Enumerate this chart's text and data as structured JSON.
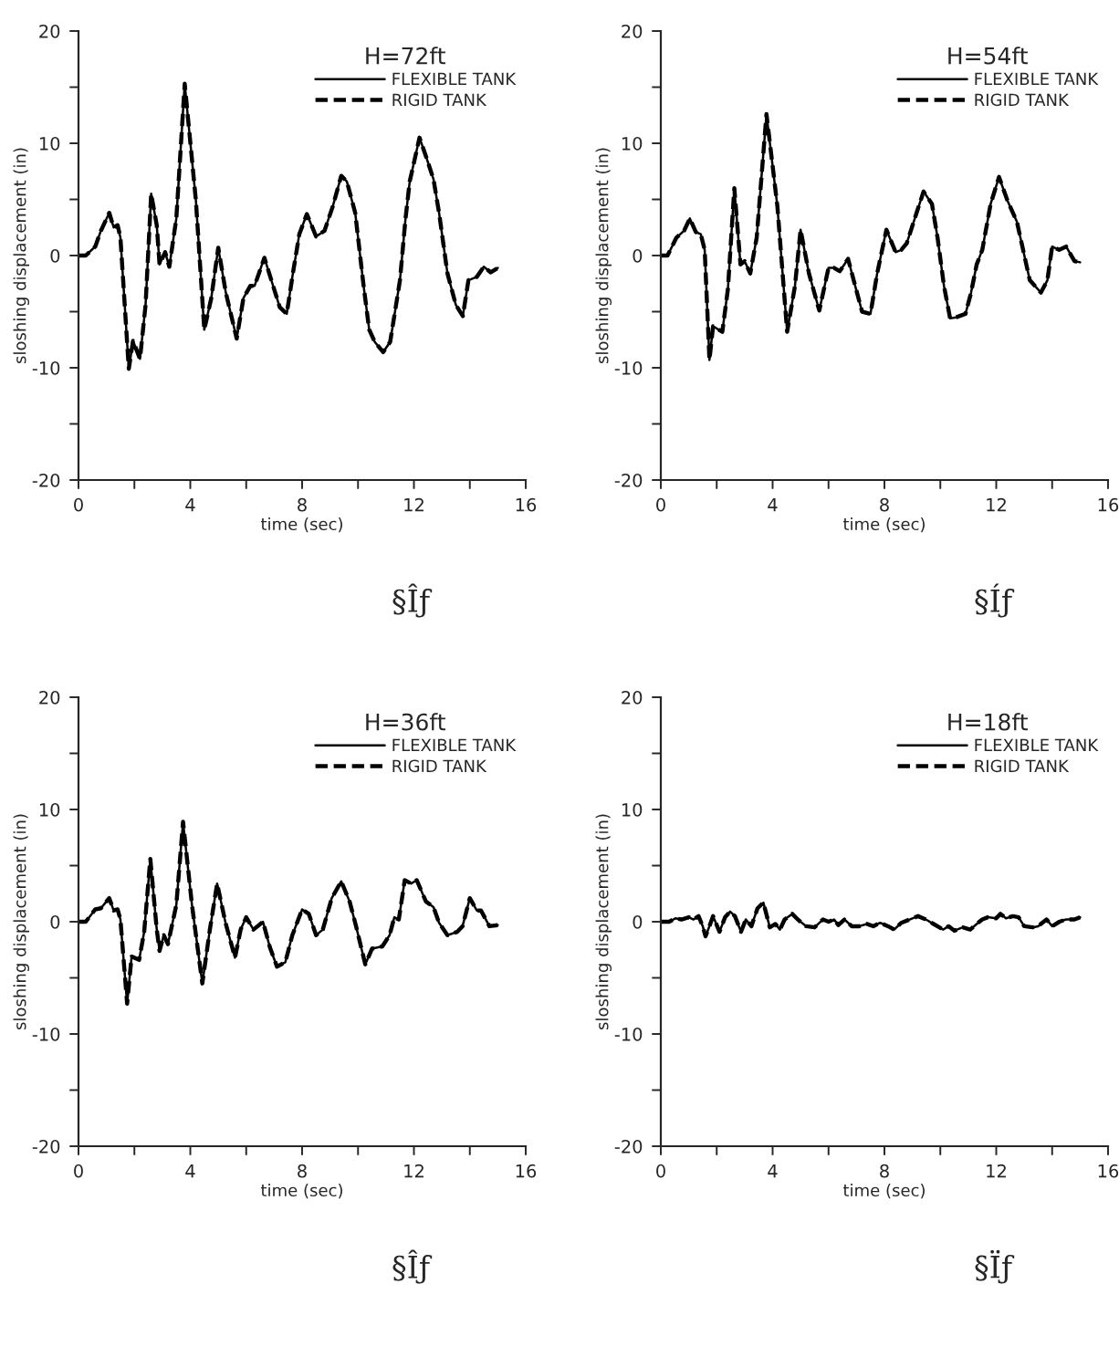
{
  "chart_data": [
    {
      "type": "line",
      "title": "H=72ft",
      "xlabel": "time (sec)",
      "ylabel": "sloshing displacement (in)",
      "annotations": [
        "§Îƒ"
      ],
      "legend": "top right",
      "xlim": [
        0,
        16
      ],
      "ylim": [
        -20,
        20
      ],
      "xticks": [
        0,
        {
          "value": 2,
          "label": null
        },
        4,
        {
          "value": 6,
          "label": null
        },
        8,
        {
          "value": 10,
          "label": null
        },
        12,
        {
          "value": 14,
          "label": null
        },
        16
      ],
      "yticks": [
        -20,
        {
          "value": -15,
          "label": null
        },
        -10,
        {
          "value": -5,
          "label": null
        },
        0,
        {
          "value": 5,
          "label": null
        },
        10,
        {
          "value": 15,
          "label": null
        },
        20
      ],
      "x": [
        0,
        0.26,
        0.6,
        0.8,
        1.1,
        1.26,
        1.4,
        1.5,
        1.8,
        1.95,
        2.2,
        2.4,
        2.6,
        2.8,
        2.9,
        3.1,
        3.25,
        3.5,
        3.8,
        4.2,
        4.5,
        4.75,
        5.0,
        5.27,
        5.66,
        5.9,
        6.15,
        6.3,
        6.65,
        6.9,
        7.2,
        7.45,
        7.67,
        7.9,
        8.17,
        8.5,
        8.8,
        9.1,
        9.4,
        9.6,
        9.9,
        10.2,
        10.4,
        10.6,
        10.9,
        11.15,
        11.4,
        11.5,
        11.7,
        11.85,
        12.2,
        12.45,
        12.7,
        12.9,
        13.2,
        13.5,
        13.75,
        13.95,
        14.25,
        14.5,
        14.75,
        15.0
      ],
      "series": [
        {
          "name": "FLEXIBLE TANK",
          "color": "#000000",
          "line_style": "solid",
          "values": [
            0,
            0,
            0.8,
            2.2,
            3.8,
            2.5,
            2.7,
            1.6,
            -10.1,
            -7.6,
            -9.2,
            -4.4,
            5.5,
            2.7,
            -0.8,
            0.3,
            -1.0,
            3.3,
            15.3,
            4.9,
            -6.6,
            -3.8,
            0.7,
            -3.3,
            -7.4,
            -3.8,
            -2.7,
            -2.7,
            -0.2,
            -2.2,
            -4.6,
            -5.2,
            -1.6,
            1.9,
            3.7,
            1.7,
            2.2,
            4.4,
            7.1,
            6.6,
            3.8,
            -2.7,
            -6.6,
            -7.7,
            -8.6,
            -7.7,
            -3.8,
            -2.2,
            3.3,
            6.6,
            10.5,
            8.7,
            6.8,
            3.8,
            -1.6,
            -4.4,
            -5.4,
            -2.2,
            -1.9,
            -1.0,
            -1.5,
            -1.1
          ]
        },
        {
          "name": "RIGID TANK",
          "color": "#000000",
          "line_style": "dashed",
          "values": [
            0,
            0,
            0.8,
            2.2,
            3.8,
            2.5,
            2.7,
            1.6,
            -10.1,
            -7.6,
            -9.2,
            -4.4,
            5.5,
            2.7,
            -0.8,
            0.3,
            -1.0,
            3.3,
            15.3,
            4.9,
            -6.6,
            -3.8,
            0.7,
            -3.3,
            -7.4,
            -3.8,
            -2.7,
            -2.7,
            -0.2,
            -2.2,
            -4.6,
            -5.2,
            -1.6,
            1.9,
            3.7,
            1.7,
            2.2,
            4.4,
            7.1,
            6.6,
            3.8,
            -2.7,
            -6.6,
            -7.7,
            -8.6,
            -7.7,
            -3.8,
            -2.2,
            3.3,
            6.6,
            10.5,
            8.7,
            6.8,
            3.8,
            -1.6,
            -4.4,
            -5.4,
            -2.2,
            -1.9,
            -1.0,
            -1.5,
            -1.1
          ]
        }
      ]
    },
    {
      "type": "line",
      "title": "H=54ft",
      "xlabel": "time (sec)",
      "ylabel": "sloshing displacement (in)",
      "annotations": [
        "§Íƒ"
      ],
      "legend": "top right",
      "xlim": [
        0,
        16
      ],
      "ylim": [
        -20,
        20
      ],
      "xticks": [
        0,
        {
          "value": 2,
          "label": null
        },
        4,
        {
          "value": 6,
          "label": null
        },
        8,
        {
          "value": 10,
          "label": null
        },
        12,
        {
          "value": 14,
          "label": null
        },
        16
      ],
      "yticks": [
        -20,
        {
          "value": -15,
          "label": null
        },
        -10,
        {
          "value": -5,
          "label": null
        },
        0,
        {
          "value": 5,
          "label": null
        },
        10,
        {
          "value": 15,
          "label": null
        },
        20
      ],
      "x": [
        0,
        0.24,
        0.56,
        0.83,
        1.04,
        1.25,
        1.43,
        1.57,
        1.74,
        1.87,
        2.2,
        2.4,
        2.63,
        2.85,
        3.0,
        3.2,
        3.43,
        3.78,
        4.17,
        4.52,
        4.8,
        5.0,
        5.3,
        5.67,
        6.0,
        6.2,
        6.4,
        6.7,
        6.9,
        7.2,
        7.5,
        7.74,
        8.07,
        8.4,
        8.6,
        8.8,
        9.15,
        9.4,
        9.7,
        9.9,
        10.13,
        10.35,
        10.57,
        10.9,
        11.1,
        11.3,
        11.5,
        11.8,
        12.1,
        12.4,
        12.74,
        13.2,
        13.6,
        13.83,
        14.0,
        14.25,
        14.5,
        14.8,
        15.0
      ],
      "series": [
        {
          "name": "FLEXIBLE TANK",
          "color": "#000000",
          "line_style": "solid",
          "values": [
            0,
            0,
            1.6,
            2.2,
            3.3,
            2.1,
            1.9,
            0.5,
            -9.3,
            -6.3,
            -6.8,
            -3.0,
            6.0,
            -0.8,
            -0.5,
            -1.6,
            1.6,
            12.6,
            4.4,
            -6.8,
            -2.7,
            2.3,
            -1.6,
            -4.9,
            -1.1,
            -1.1,
            -1.4,
            -0.3,
            -2.2,
            -5.0,
            -5.2,
            -1.6,
            2.3,
            0.3,
            0.5,
            1.1,
            3.8,
            5.7,
            4.6,
            1.6,
            -2.7,
            -5.6,
            -5.5,
            -5.2,
            -3.3,
            -0.8,
            0.5,
            4.6,
            7.0,
            4.9,
            3.0,
            -2.2,
            -3.3,
            -2.2,
            0.8,
            0.5,
            0.8,
            -0.5,
            -0.6
          ]
        },
        {
          "name": "RIGID TANK",
          "color": "#000000",
          "line_style": "dashed",
          "values": [
            0,
            0,
            1.6,
            2.2,
            3.3,
            2.1,
            1.9,
            0.5,
            -9.3,
            -6.3,
            -6.8,
            -3.0,
            6.0,
            -0.8,
            -0.5,
            -1.6,
            1.6,
            12.6,
            4.4,
            -6.8,
            -2.7,
            2.3,
            -1.6,
            -4.9,
            -1.1,
            -1.1,
            -1.4,
            -0.3,
            -2.2,
            -5.0,
            -5.2,
            -1.6,
            2.3,
            0.3,
            0.5,
            1.1,
            3.8,
            5.7,
            4.6,
            1.6,
            -2.7,
            -5.6,
            -5.5,
            -5.2,
            -3.3,
            -0.8,
            0.5,
            4.6,
            7.0,
            4.9,
            3.0,
            -2.2,
            -3.3,
            -2.2,
            0.8,
            0.5,
            0.8,
            -0.5,
            -0.6
          ]
        }
      ]
    },
    {
      "type": "line",
      "title": "H=36ft",
      "xlabel": "time (sec)",
      "ylabel": "sloshing displacement (in)",
      "annotations": [
        "§Îƒ"
      ],
      "legend": "top right",
      "xlim": [
        0,
        16
      ],
      "ylim": [
        -20,
        20
      ],
      "xticks": [
        0,
        {
          "value": 2,
          "label": null
        },
        4,
        {
          "value": 6,
          "label": null
        },
        8,
        {
          "value": 10,
          "label": null
        },
        12,
        {
          "value": 14,
          "label": null
        },
        16
      ],
      "yticks": [
        -20,
        {
          "value": -15,
          "label": null
        },
        -10,
        {
          "value": -5,
          "label": null
        },
        0,
        {
          "value": 5,
          "label": null
        },
        10,
        {
          "value": 15,
          "label": null
        },
        20
      ],
      "x": [
        0,
        0.26,
        0.6,
        0.8,
        1.1,
        1.26,
        1.4,
        1.5,
        1.74,
        1.9,
        2.17,
        2.35,
        2.57,
        2.8,
        2.9,
        3.05,
        3.2,
        3.5,
        3.74,
        4.06,
        4.43,
        4.7,
        4.96,
        5.26,
        5.6,
        5.8,
        6.0,
        6.26,
        6.6,
        6.85,
        7.1,
        7.4,
        7.65,
        8.0,
        8.24,
        8.5,
        8.74,
        9.06,
        9.4,
        9.7,
        9.93,
        10.26,
        10.5,
        10.87,
        11.13,
        11.3,
        11.46,
        11.67,
        11.9,
        12.1,
        12.43,
        12.7,
        12.9,
        13.2,
        13.55,
        13.74,
        14.0,
        14.25,
        14.4,
        14.7,
        15.0
      ],
      "series": [
        {
          "name": "FLEXIBLE TANK",
          "color": "#000000",
          "line_style": "solid",
          "values": [
            0,
            0,
            1.1,
            1.2,
            2.1,
            1.0,
            1.1,
            0.2,
            -7.3,
            -3.1,
            -3.4,
            -0.9,
            5.6,
            -0.7,
            -2.6,
            -1.2,
            -2.0,
            1.5,
            8.9,
            1.5,
            -5.5,
            -0.7,
            3.4,
            -0.1,
            -3.2,
            -0.7,
            0.4,
            -0.7,
            0.0,
            -2.3,
            -4.0,
            -3.6,
            -1.2,
            1.1,
            0.7,
            -1.2,
            -0.7,
            2.1,
            3.6,
            1.8,
            -0.4,
            -3.8,
            -2.4,
            -2.2,
            -1.2,
            0.4,
            0.2,
            3.7,
            3.4,
            3.7,
            1.8,
            1.3,
            -0.1,
            -1.2,
            -0.9,
            -0.4,
            2.1,
            1.0,
            1.0,
            -0.4,
            -0.3
          ]
        },
        {
          "name": "RIGID TANK",
          "color": "#000000",
          "line_style": "dashed",
          "values": [
            0,
            0,
            1.1,
            1.2,
            2.1,
            1.0,
            1.1,
            0.2,
            -7.3,
            -3.1,
            -3.4,
            -0.9,
            5.6,
            -0.7,
            -2.6,
            -1.2,
            -2.0,
            1.5,
            8.9,
            1.5,
            -5.5,
            -0.7,
            3.4,
            -0.1,
            -3.2,
            -0.7,
            0.4,
            -0.7,
            0.0,
            -2.3,
            -4.0,
            -3.6,
            -1.2,
            1.1,
            0.7,
            -1.2,
            -0.7,
            2.1,
            3.6,
            1.8,
            -0.4,
            -3.8,
            -2.4,
            -2.2,
            -1.2,
            0.4,
            0.2,
            3.7,
            3.4,
            3.7,
            1.8,
            1.3,
            -0.1,
            -1.2,
            -0.9,
            -0.4,
            2.1,
            1.0,
            1.0,
            -0.4,
            -0.3
          ]
        }
      ]
    },
    {
      "type": "line",
      "title": "H=18ft",
      "xlabel": "time (sec)",
      "ylabel": "sloshing displacement (in)",
      "annotations": [
        "§Ïƒ"
      ],
      "legend": "top right",
      "xlim": [
        0,
        16
      ],
      "ylim": [
        -20,
        20
      ],
      "xticks": [
        0,
        {
          "value": 2,
          "label": null
        },
        4,
        {
          "value": 6,
          "label": null
        },
        8,
        {
          "value": 10,
          "label": null
        },
        12,
        {
          "value": 14,
          "label": null
        },
        16
      ],
      "yticks": [
        -20,
        {
          "value": -15,
          "label": null
        },
        -10,
        {
          "value": -5,
          "label": null
        },
        0,
        {
          "value": 5,
          "label": null
        },
        10,
        {
          "value": 15,
          "label": null
        },
        20
      ],
      "x": [
        0,
        0.3,
        0.52,
        0.74,
        1.0,
        1.17,
        1.35,
        1.5,
        1.6,
        1.74,
        1.87,
        2.1,
        2.3,
        2.48,
        2.65,
        2.87,
        3.04,
        3.24,
        3.46,
        3.67,
        3.9,
        4.1,
        4.26,
        4.43,
        4.7,
        4.9,
        5.2,
        5.5,
        5.8,
        6.0,
        6.2,
        6.35,
        6.57,
        6.83,
        7.1,
        7.37,
        7.6,
        7.85,
        8.13,
        8.35,
        8.6,
        8.9,
        9.2,
        9.48,
        9.76,
        10.1,
        10.3,
        10.5,
        10.8,
        11.07,
        11.3,
        11.5,
        11.7,
        12.0,
        12.15,
        12.35,
        12.6,
        12.8,
        13.0,
        13.3,
        13.5,
        13.8,
        14.0,
        14.26,
        14.5,
        14.8,
        15.0
      ],
      "series": [
        {
          "name": "FLEXIBLE TANK",
          "color": "#000000",
          "line_style": "solid",
          "values": [
            0,
            0,
            0.3,
            0.2,
            0.4,
            0.2,
            0.5,
            -0.4,
            -1.3,
            -0.4,
            0.5,
            -0.9,
            0.4,
            0.9,
            0.5,
            -0.9,
            0.2,
            -0.4,
            1.2,
            1.7,
            -0.5,
            -0.2,
            -0.7,
            0.2,
            0.7,
            0.2,
            -0.4,
            -0.5,
            0.2,
            0.0,
            0.2,
            -0.3,
            0.2,
            -0.4,
            -0.4,
            -0.2,
            -0.4,
            -0.1,
            -0.4,
            -0.7,
            -0.1,
            0.2,
            0.5,
            0.2,
            -0.2,
            -0.7,
            -0.4,
            -0.8,
            -0.5,
            -0.7,
            -0.2,
            0.2,
            0.4,
            0.3,
            0.7,
            0.3,
            0.5,
            0.4,
            -0.4,
            -0.5,
            -0.4,
            0.2,
            -0.4,
            0.0,
            0.2,
            0.2,
            0.4
          ]
        },
        {
          "name": "RIGID TANK",
          "color": "#000000",
          "line_style": "dashed",
          "values": [
            0,
            0,
            0.3,
            0.2,
            0.4,
            0.2,
            0.5,
            -0.4,
            -1.3,
            -0.4,
            0.5,
            -0.9,
            0.4,
            0.9,
            0.5,
            -0.9,
            0.2,
            -0.4,
            1.2,
            1.7,
            -0.5,
            -0.2,
            -0.7,
            0.2,
            0.7,
            0.2,
            -0.4,
            -0.5,
            0.2,
            0.0,
            0.2,
            -0.3,
            0.2,
            -0.4,
            -0.4,
            -0.2,
            -0.4,
            -0.1,
            -0.4,
            -0.7,
            -0.1,
            0.2,
            0.5,
            0.2,
            -0.2,
            -0.7,
            -0.4,
            -0.8,
            -0.5,
            -0.7,
            -0.2,
            0.2,
            0.4,
            0.3,
            0.7,
            0.3,
            0.5,
            0.4,
            -0.4,
            -0.5,
            -0.4,
            0.2,
            -0.4,
            0.0,
            0.2,
            0.2,
            0.4
          ]
        }
      ]
    }
  ]
}
